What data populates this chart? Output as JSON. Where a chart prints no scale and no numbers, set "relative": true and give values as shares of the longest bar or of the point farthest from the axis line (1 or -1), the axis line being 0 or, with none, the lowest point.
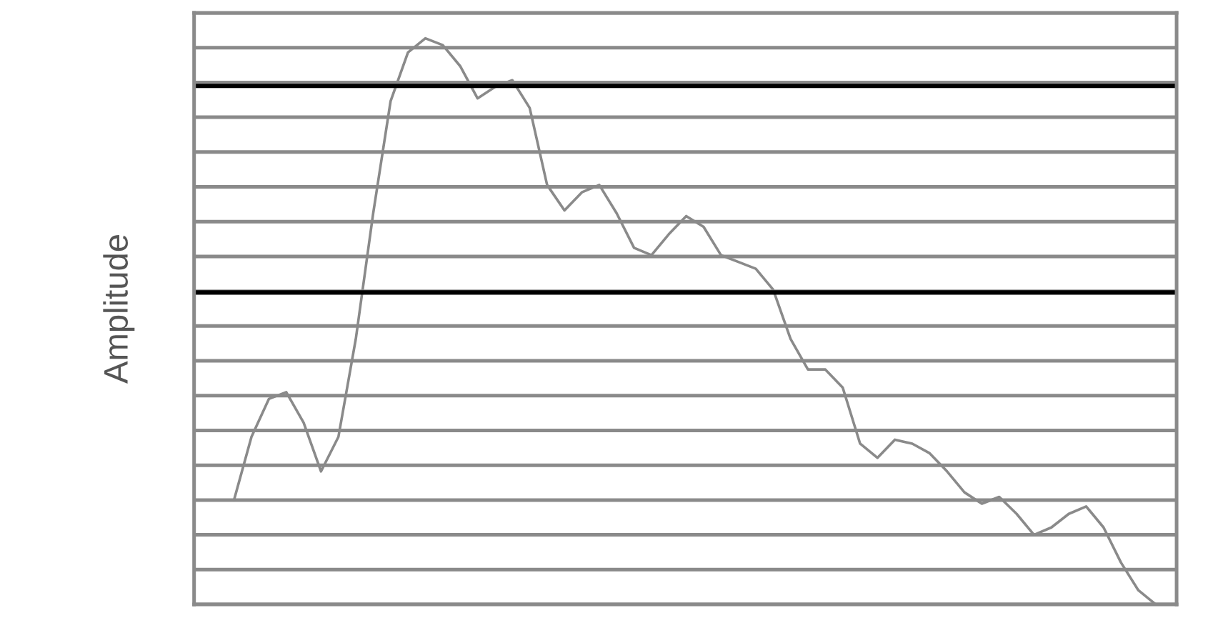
{
  "chart_data": {
    "type": "line",
    "ylabel": "Amplitude",
    "relative": true,
    "grid": "y",
    "tick_labels": false,
    "categories": [
      null,
      null,
      null,
      null,
      null,
      null,
      null,
      null,
      null,
      null,
      null,
      null,
      null,
      null,
      null,
      null,
      null,
      null,
      null,
      null,
      null,
      null,
      null,
      null,
      null,
      null,
      null,
      null,
      null,
      null,
      null,
      null,
      null,
      null,
      null,
      null,
      null,
      null,
      null,
      null,
      null,
      null,
      null,
      null,
      null,
      null,
      null,
      null,
      null,
      null,
      null,
      null,
      null,
      null
    ],
    "series": [
      {
        "color": "#8a8a8a",
        "values": [
          0.185,
          0.296,
          0.363,
          0.375,
          0.321,
          0.235,
          0.296,
          0.469,
          0.691,
          0.889,
          0.975,
          1.0,
          0.988,
          0.951,
          0.894,
          0.914,
          0.926,
          0.877,
          0.741,
          0.696,
          0.728,
          0.741,
          0.691,
          0.63,
          0.617,
          0.654,
          0.686,
          0.667,
          0.617,
          0.605,
          0.593,
          0.556,
          0.469,
          0.415,
          0.415,
          0.383,
          0.284,
          0.259,
          0.291,
          0.284,
          0.267,
          0.235,
          0.198,
          0.178,
          0.19,
          0.16,
          0.123,
          0.136,
          0.16,
          0.173,
          0.136,
          0.074,
          0.025,
          0.0
        ]
      }
    ],
    "ref_lines": [
      {
        "axis": "y",
        "value": 0.916,
        "color": "#000000"
      },
      {
        "axis": "y",
        "value": 0.551,
        "color": "#000000"
      }
    ]
  }
}
